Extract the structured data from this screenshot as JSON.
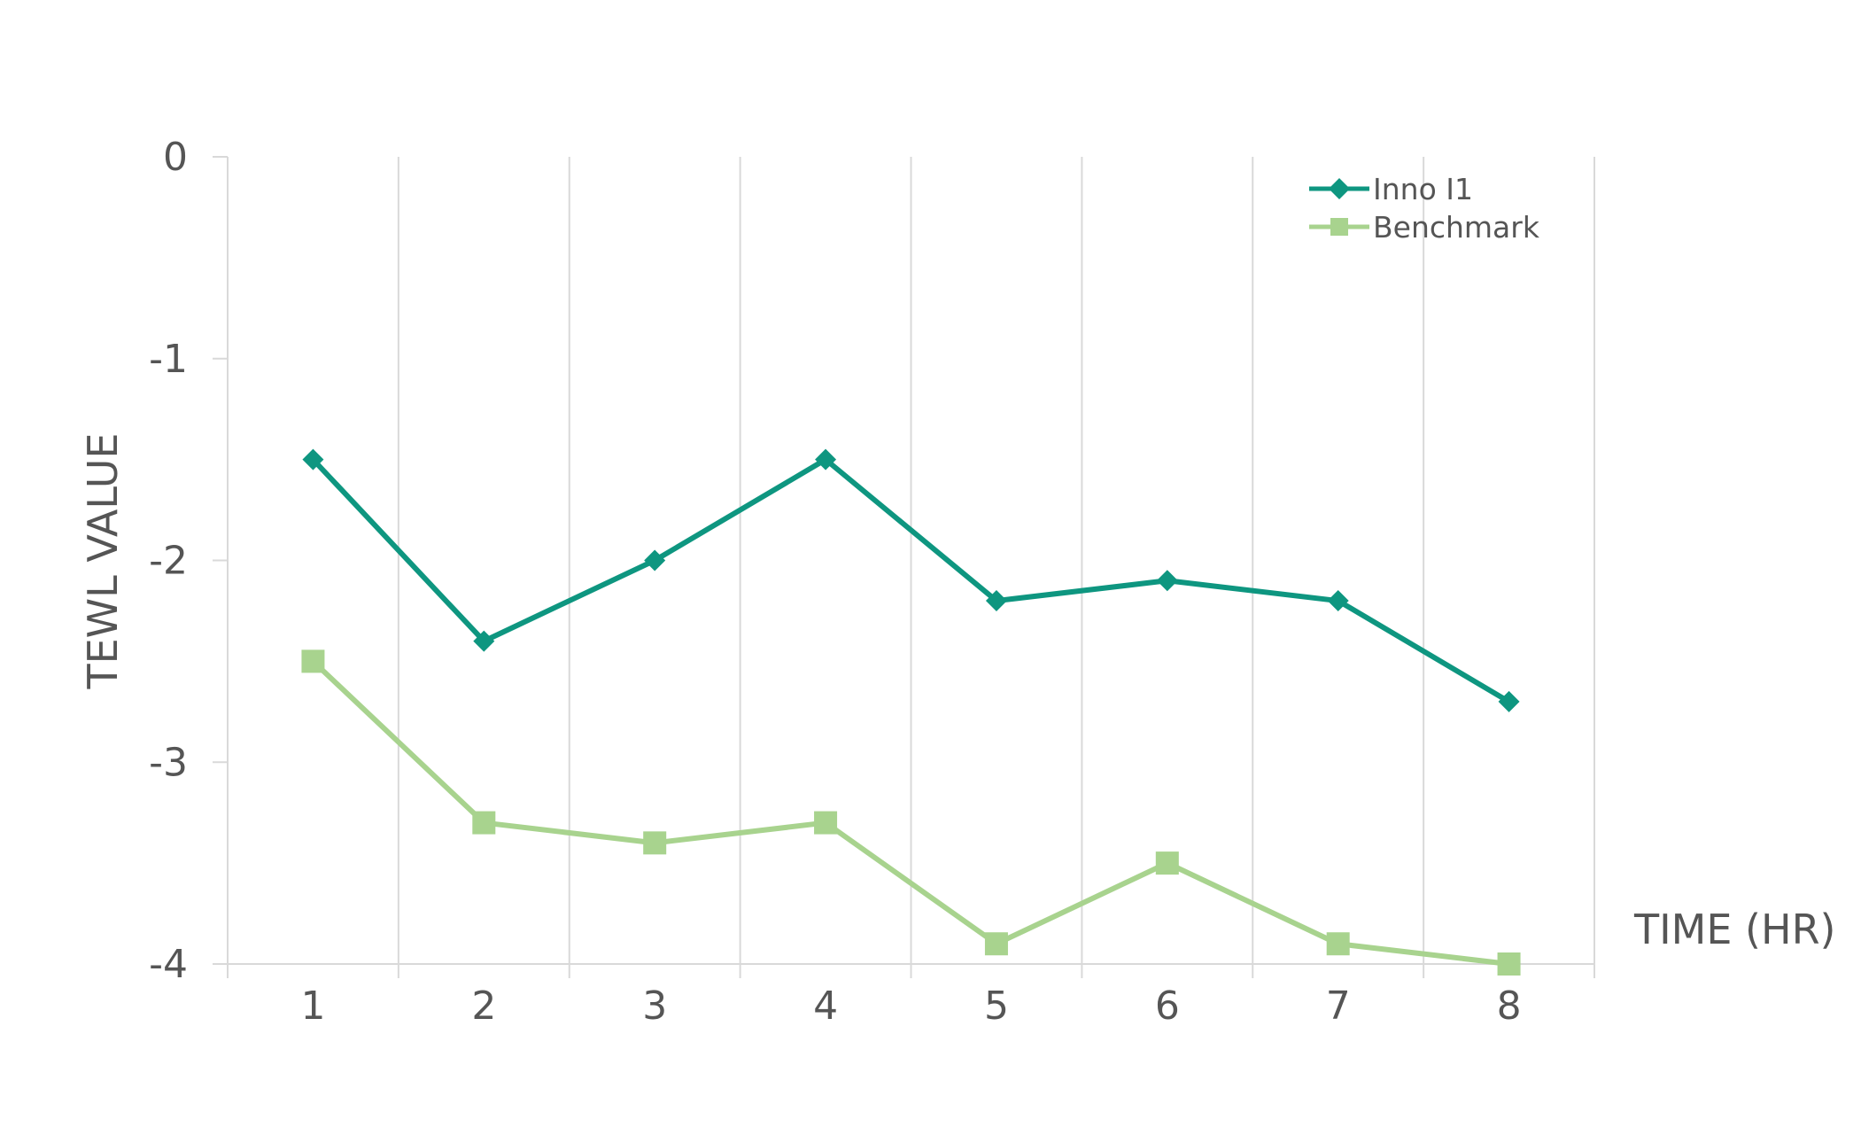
{
  "chart_data": {
    "type": "line",
    "title": "",
    "xlabel": "TIME (HR)",
    "ylabel": "TEWL VALUE",
    "categories": [
      "1",
      "2",
      "3",
      "4",
      "5",
      "6",
      "7",
      "8"
    ],
    "ylim": [
      -4,
      0
    ],
    "yticks": [
      "0",
      "-1",
      "-2",
      "-3",
      "-4"
    ],
    "grid": "vertical",
    "legend_position": "top-right",
    "series": [
      {
        "name": "Inno I1",
        "color": "#0e9680",
        "marker": "diamond",
        "values": [
          -1.5,
          -2.4,
          -2.0,
          -1.5,
          -2.2,
          -2.1,
          -2.2,
          -2.7
        ]
      },
      {
        "name": "Benchmark",
        "color": "#a8d38e",
        "marker": "square",
        "values": [
          -2.5,
          -3.3,
          -3.4,
          -3.3,
          -3.9,
          -3.5,
          -3.9,
          -4.0
        ]
      }
    ]
  }
}
